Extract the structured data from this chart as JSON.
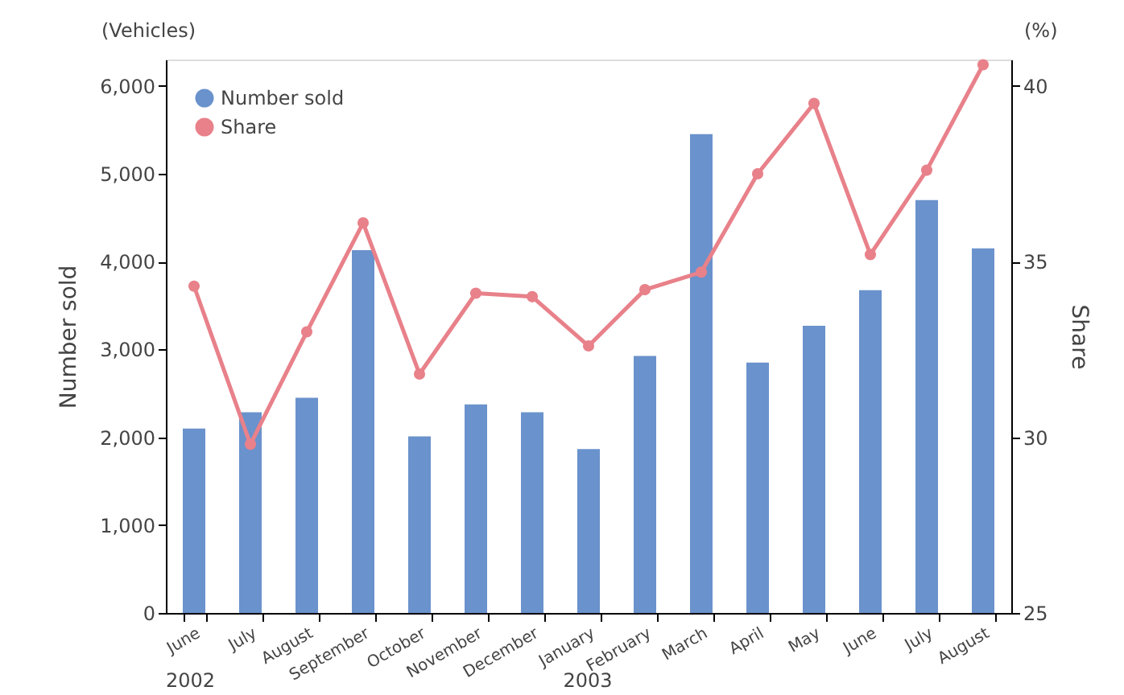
{
  "chart_data": {
    "type": "bar",
    "categories": [
      "June",
      "July",
      "August",
      "September",
      "October",
      "November",
      "December",
      "January",
      "February",
      "March",
      "April",
      "May",
      "June",
      "July",
      "August"
    ],
    "series": [
      {
        "name": "Number sold",
        "color": "#6a92cc",
        "values": [
          2100,
          2285,
          2450,
          4130,
          2010,
          2375,
          2285,
          1865,
          2925,
          5450,
          2850,
          3270,
          3675,
          4700,
          4150
        ]
      },
      {
        "name": "Share",
        "type": "line",
        "axis": "y2",
        "color": "#e8818a",
        "values": [
          34.3,
          29.8,
          33.0,
          36.1,
          31.8,
          34.1,
          34.0,
          32.6,
          34.2,
          34.7,
          37.5,
          39.5,
          35.2,
          37.6,
          40.6
        ]
      }
    ],
    "ylabel": "Number sold",
    "y2label": "Share",
    "ylim": [
      0,
      6300
    ],
    "yticks": [
      {
        "value": 0,
        "label": "0"
      },
      {
        "value": 1000,
        "label": "1,000"
      },
      {
        "value": 2000,
        "label": "2,000"
      },
      {
        "value": 3000,
        "label": "3,000"
      },
      {
        "value": 4000,
        "label": "4,000"
      },
      {
        "value": 5000,
        "label": "5,000"
      },
      {
        "value": 6000,
        "label": "6,000"
      }
    ],
    "y2lim": [
      25,
      40.75
    ],
    "y2ticks": [
      25,
      30,
      35,
      40
    ],
    "annotations": [
      "(Vehicles)",
      "(%)",
      "2002",
      "2003"
    ],
    "marker": "circle",
    "line_style": "solid",
    "grid": false,
    "legend": "top left"
  }
}
